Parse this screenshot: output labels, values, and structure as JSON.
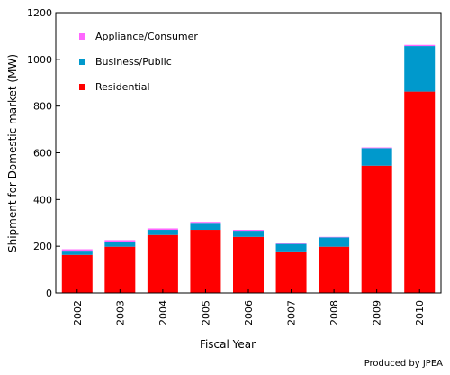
{
  "chart_data": {
    "type": "bar",
    "stacked": true,
    "title": "",
    "xlabel": "Fiscal Year",
    "ylabel": "Shipment for Domestic market (MW)",
    "ylim": [
      0,
      1200
    ],
    "yticks": [
      0,
      200,
      400,
      600,
      800,
      1000,
      1200
    ],
    "grid": false,
    "legend_position": "top-left",
    "categories": [
      "2002",
      "2003",
      "2004",
      "2005",
      "2006",
      "2007",
      "2008",
      "2009",
      "2010"
    ],
    "series": [
      {
        "name": "Residential",
        "color": "#ff0000",
        "values": [
          163,
          198,
          248,
          270,
          240,
          178,
          198,
          545,
          862
        ]
      },
      {
        "name": "Business/Public",
        "color": "#0099cc",
        "values": [
          18,
          20,
          22,
          30,
          26,
          32,
          40,
          75,
          195
        ]
      },
      {
        "name": "Appliance/Consumer",
        "color": "#ff66ff",
        "values": [
          6,
          8,
          6,
          4,
          4,
          2,
          2,
          3,
          5
        ]
      }
    ],
    "legend_order": [
      "Appliance/Consumer",
      "Business/Public",
      "Residential"
    ]
  },
  "credit": "Produced by JPEA"
}
